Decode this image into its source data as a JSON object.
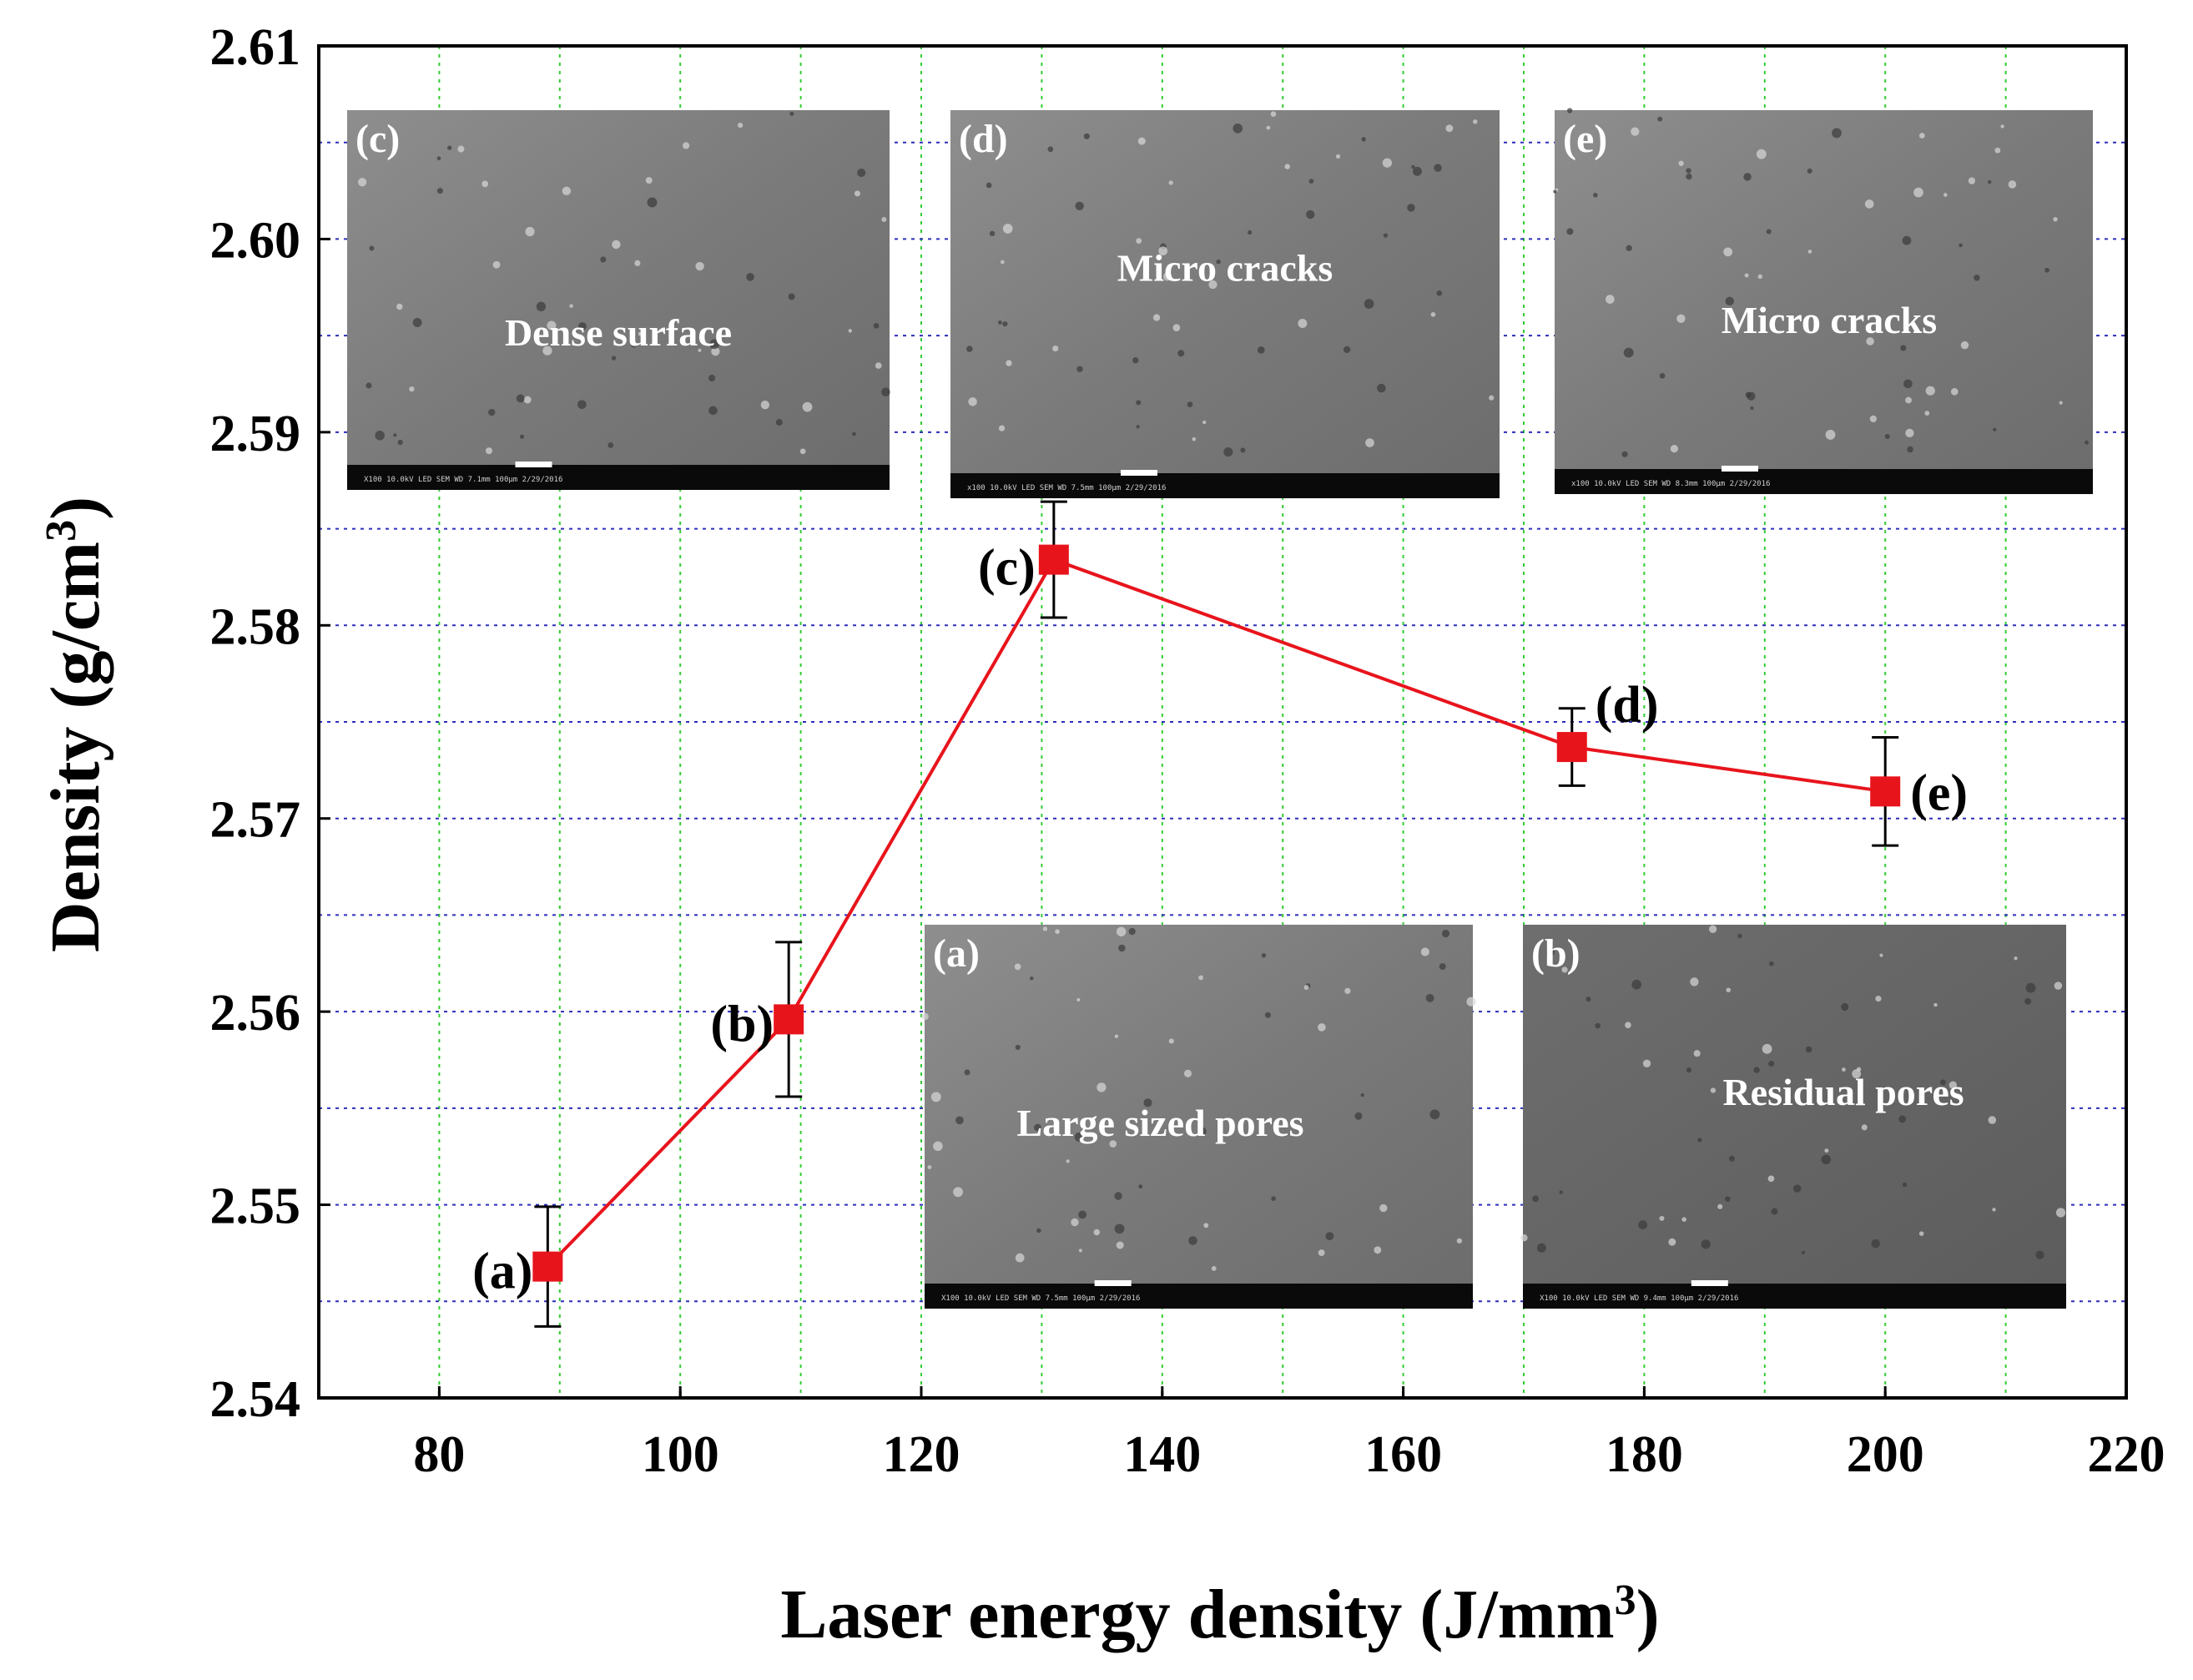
{
  "chart_data": {
    "type": "line",
    "xlabel": "Laser energy density (J/mm",
    "xlabel_sup": "3",
    "xlabel_close": ")",
    "ylabel": "Density (g/cm",
    "ylabel_sup": "3",
    "ylabel_close": ")",
    "xlim": [
      70,
      220
    ],
    "ylim": [
      2.54,
      2.61
    ],
    "xticks": [
      80,
      100,
      120,
      140,
      160,
      180,
      200,
      220
    ],
    "yticks": [
      2.54,
      2.55,
      2.56,
      2.57,
      2.58,
      2.59,
      2.6,
      2.61
    ],
    "ytick_labels": [
      "2.54",
      "2.55",
      "2.56",
      "2.57",
      "2.58",
      "2.59",
      "2.60",
      "2.61"
    ],
    "grid": true,
    "series": [
      {
        "name": "Density",
        "color": "#e8141c",
        "points": [
          {
            "x": 89,
            "y": 2.5468,
            "err": 0.0031,
            "label": "(a)"
          },
          {
            "x": 109,
            "y": 2.5596,
            "err": 0.004,
            "label": "(b)"
          },
          {
            "x": 131,
            "y": 2.5834,
            "err": 0.003,
            "label": "(c)"
          },
          {
            "x": 174,
            "y": 2.5737,
            "err": 0.002,
            "label": "(d)"
          },
          {
            "x": 200,
            "y": 2.5714,
            "err": 0.0028,
            "label": "(e)"
          }
        ]
      }
    ]
  },
  "insets": [
    {
      "id": "c",
      "letter": "(c)",
      "caption": "Dense surface",
      "info": "X100    10.0kV LED    SEM    WD 7.1mm    100μm    2/29/2016"
    },
    {
      "id": "d",
      "letter": "(d)",
      "caption": "Micro cracks",
      "info": "x100    10.0kV LED    SEM    WD 7.5mm    100μm    2/29/2016"
    },
    {
      "id": "e",
      "letter": "(e)",
      "caption": "Micro cracks",
      "info": "x100    10.0kV LED    SEM    WD 8.3mm    100μm    2/29/2016"
    },
    {
      "id": "a",
      "letter": "(a)",
      "caption": "Large sized pores",
      "info": "X100    10.0kV LED    SEM    WD 7.5mm    100μm    2/29/2016"
    },
    {
      "id": "b",
      "letter": "(b)",
      "caption": "Residual pores",
      "info": "X100    10.0kV LED    SEM    WD 9.4mm    100μm    2/29/2016"
    }
  ]
}
